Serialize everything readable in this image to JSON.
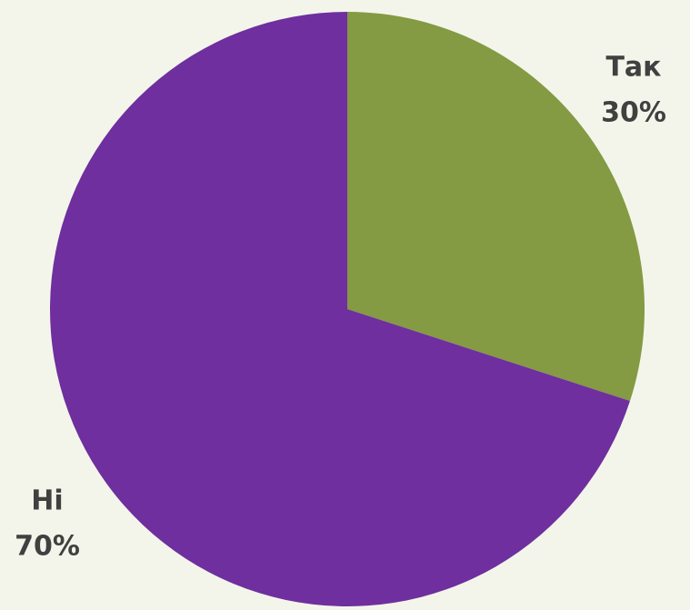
{
  "chart_data": {
    "type": "pie",
    "categories": [
      "Так",
      "Ні"
    ],
    "values": [
      30,
      70
    ],
    "value_labels": [
      "30%",
      "70%"
    ],
    "colors": [
      "#849a43",
      "#6f2f9e"
    ]
  }
}
